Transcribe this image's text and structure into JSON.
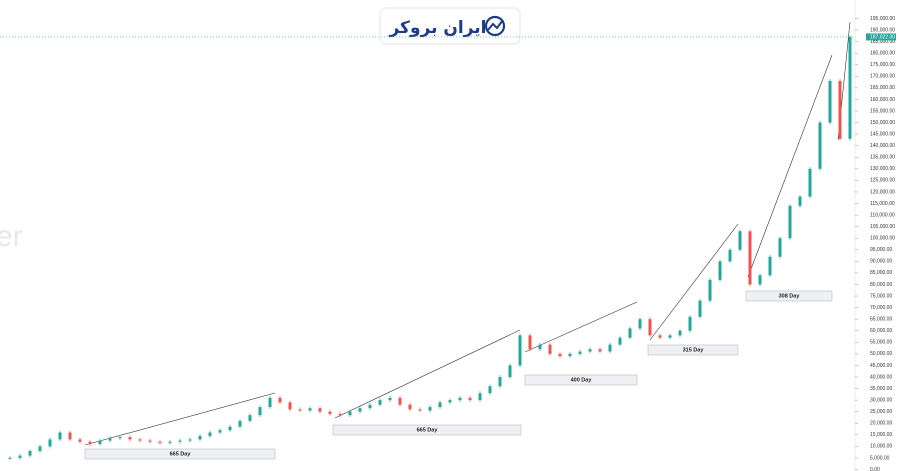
{
  "chart_data": {
    "type": "candlestick",
    "logo": "ایران بروکر",
    "watermark": "er",
    "up_color": "#26a69a",
    "down_color": "#ef5350",
    "x": [
      10,
      20,
      30,
      40,
      50,
      60,
      70,
      80,
      90,
      100,
      110,
      120,
      130,
      140,
      150,
      160,
      170,
      180,
      190,
      200,
      210,
      220,
      230,
      240,
      250,
      260,
      270,
      280,
      290,
      300,
      310,
      320,
      330,
      340,
      350,
      360,
      370,
      380,
      390,
      400,
      410,
      420,
      430,
      440,
      450,
      460,
      470,
      480,
      490,
      500,
      510,
      520,
      530,
      540,
      550,
      560,
      570,
      580,
      590,
      600,
      610,
      620,
      630,
      640,
      650,
      660,
      670,
      680,
      690,
      700,
      710,
      720,
      730,
      740,
      750,
      760,
      770,
      780,
      790,
      800,
      810,
      820,
      830,
      840,
      850
    ],
    "values": [
      5000,
      6000,
      8000,
      10000,
      13000,
      16000,
      13000,
      12000,
      11000,
      12500,
      13500,
      14000,
      13000,
      12500,
      12000,
      11500,
      12000,
      12500,
      13000,
      14500,
      16000,
      17000,
      18500,
      21000,
      23500,
      27000,
      31000,
      29000,
      26000,
      25500,
      26500,
      25000,
      24000,
      23500,
      25000,
      26500,
      28000,
      30000,
      31000,
      28000,
      26000,
      25500,
      27000,
      29000,
      30000,
      31000,
      30000,
      33000,
      36000,
      40000,
      45000,
      58000,
      52000,
      54000,
      50000,
      49000,
      50000,
      51000,
      52000,
      51000,
      54000,
      57000,
      61000,
      65000,
      58000,
      57000,
      58000,
      60000,
      66000,
      73000,
      82000,
      90000,
      95000,
      103000,
      80000,
      84000,
      92000,
      100000,
      114000,
      118000,
      130000,
      150000,
      168000,
      143000,
      187022
    ],
    "last_price": {
      "value": 187022,
      "label": "187,022.00"
    },
    "xlim": [
      0,
      855
    ],
    "ylim": [
      0,
      203000
    ],
    "yticks": [
      {
        "value": 0,
        "label": "0.00"
      },
      {
        "value": 5000,
        "label": "5,000.00"
      },
      {
        "value": 10000,
        "label": "10,000.00"
      },
      {
        "value": 15000,
        "label": "15,000.00"
      },
      {
        "value": 20000,
        "label": "20,000.00"
      },
      {
        "value": 25000,
        "label": "25,000.00"
      },
      {
        "value": 30000,
        "label": "30,000.00"
      },
      {
        "value": 35000,
        "label": "35,000.00"
      },
      {
        "value": 40000,
        "label": "40,000.00"
      },
      {
        "value": 45000,
        "label": "45,000.00"
      },
      {
        "value": 50000,
        "label": "50,000.00"
      },
      {
        "value": 55000,
        "label": "55,000.00"
      },
      {
        "value": 60000,
        "label": "60,000.00"
      },
      {
        "value": 65000,
        "label": "65,000.00"
      },
      {
        "value": 70000,
        "label": "70,000.00"
      },
      {
        "value": 75000,
        "label": "75,000.00"
      },
      {
        "value": 80000,
        "label": "80,000.00"
      },
      {
        "value": 85000,
        "label": "85,000.00"
      },
      {
        "value": 90000,
        "label": "90,000.00"
      },
      {
        "value": 95000,
        "label": "95,000.00"
      },
      {
        "value": 100000,
        "label": "100,000.00"
      },
      {
        "value": 105000,
        "label": "105,000.00"
      },
      {
        "value": 110000,
        "label": "110,000.00"
      },
      {
        "value": 115000,
        "label": "115,000.00"
      },
      {
        "value": 120000,
        "label": "120,000.00"
      },
      {
        "value": 125000,
        "label": "125,000.00"
      },
      {
        "value": 130000,
        "label": "130,000.00"
      },
      {
        "value": 135000,
        "label": "135,000.00"
      },
      {
        "value": 140000,
        "label": "140,000.00"
      },
      {
        "value": 145000,
        "label": "145,000.00"
      },
      {
        "value": 150000,
        "label": "150,000.00"
      },
      {
        "value": 155000,
        "label": "155,000.00"
      },
      {
        "value": 160000,
        "label": "160,000.00"
      },
      {
        "value": 165000,
        "label": "165,000.00"
      },
      {
        "value": 170000,
        "label": "170,000.00"
      },
      {
        "value": 175000,
        "label": "175,000.00"
      },
      {
        "value": 180000,
        "label": "180,000.00"
      },
      {
        "value": 185000,
        "label": "185,000.00"
      },
      {
        "value": 190000,
        "label": "190,000.00"
      },
      {
        "value": 195000,
        "label": "195,000.00"
      }
    ],
    "annotations": [
      "665 Day",
      "665 Day",
      "400 Day",
      "315 Day",
      "308 Day"
    ]
  }
}
